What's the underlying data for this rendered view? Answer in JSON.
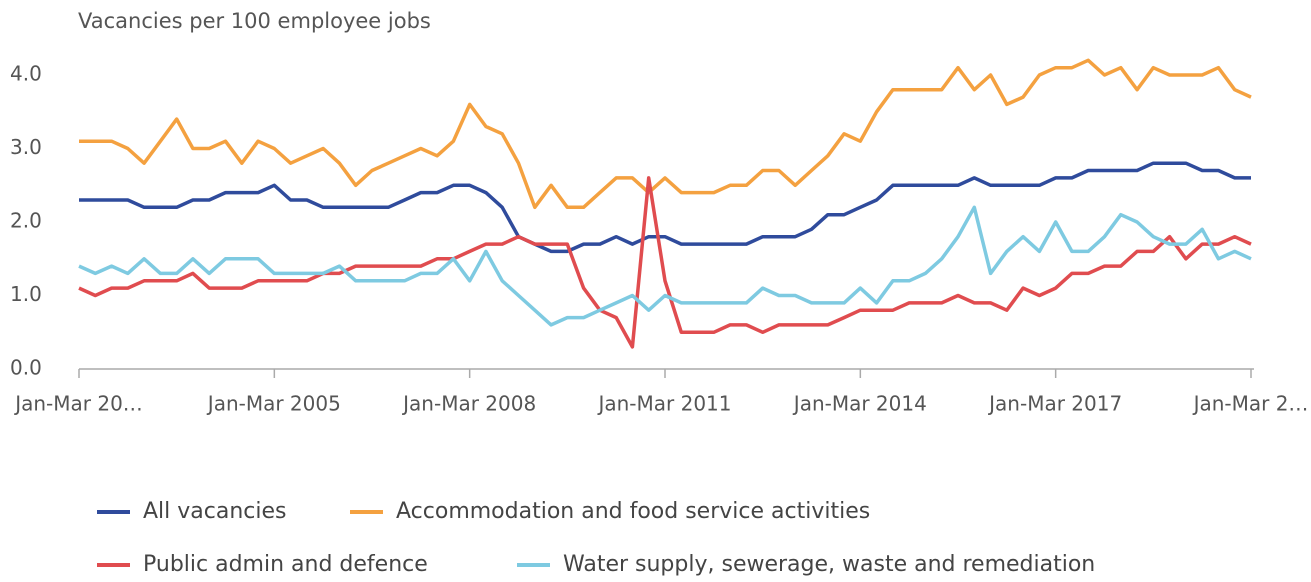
{
  "chart_data": {
    "type": "line",
    "title": "Vacancies per 100 employee jobs",
    "categories": [
      "Jan-Mar 20…",
      null,
      null,
      null,
      null,
      null,
      null,
      null,
      null,
      null,
      null,
      null,
      "Jan-Mar 2005",
      null,
      null,
      null,
      null,
      null,
      null,
      null,
      null,
      null,
      null,
      null,
      "Jan-Mar 2008",
      null,
      null,
      null,
      null,
      null,
      null,
      null,
      null,
      null,
      null,
      null,
      "Jan-Mar 2011",
      null,
      null,
      null,
      null,
      null,
      null,
      null,
      null,
      null,
      null,
      null,
      "Jan-Mar 2014",
      null,
      null,
      null,
      null,
      null,
      null,
      null,
      null,
      null,
      null,
      null,
      "Jan-Mar 2017",
      null,
      null,
      null,
      null,
      null,
      null,
      null,
      null,
      null,
      null,
      null,
      "Jan-Mar 2…"
    ],
    "series": [
      {
        "name": "All vacancies",
        "color": "#2f4b9c",
        "values": [
          2.3,
          2.3,
          2.3,
          2.3,
          2.2,
          2.2,
          2.2,
          2.3,
          2.3,
          2.4,
          2.4,
          2.4,
          2.5,
          2.3,
          2.3,
          2.2,
          2.2,
          2.2,
          2.2,
          2.2,
          2.3,
          2.4,
          2.4,
          2.5,
          2.5,
          2.4,
          2.2,
          1.8,
          1.7,
          1.6,
          1.6,
          1.7,
          1.7,
          1.8,
          1.7,
          1.8,
          1.8,
          1.7,
          1.7,
          1.7,
          1.7,
          1.7,
          1.8,
          1.8,
          1.8,
          1.9,
          2.1,
          2.1,
          2.2,
          2.3,
          2.5,
          2.5,
          2.5,
          2.5,
          2.5,
          2.6,
          2.5,
          2.5,
          2.5,
          2.5,
          2.6,
          2.6,
          2.7,
          2.7,
          2.7,
          2.7,
          2.8,
          2.8,
          2.8,
          2.7,
          2.7,
          2.6,
          2.6
        ]
      },
      {
        "name": "Accommodation and food service activities",
        "color": "#f4a140",
        "values": [
          3.1,
          3.1,
          3.1,
          3.0,
          2.8,
          3.1,
          3.4,
          3.0,
          3.0,
          3.1,
          2.8,
          3.1,
          3.0,
          2.8,
          2.9,
          3.0,
          2.8,
          2.5,
          2.7,
          2.8,
          2.9,
          3.0,
          2.9,
          3.1,
          3.6,
          3.3,
          3.2,
          2.8,
          2.2,
          2.5,
          2.2,
          2.2,
          2.4,
          2.6,
          2.6,
          2.4,
          2.6,
          2.4,
          2.4,
          2.4,
          2.5,
          2.5,
          2.7,
          2.7,
          2.5,
          2.7,
          2.9,
          3.2,
          3.1,
          3.5,
          3.8,
          3.8,
          3.8,
          3.8,
          4.1,
          3.8,
          4.0,
          3.6,
          3.7,
          4.0,
          4.1,
          4.1,
          4.2,
          4.0,
          4.1,
          3.8,
          4.1,
          4.0,
          4.0,
          4.0,
          4.1,
          3.8,
          3.7
        ]
      },
      {
        "name": "Public admin and defence",
        "color": "#e04c4f",
        "values": [
          1.1,
          1.0,
          1.1,
          1.1,
          1.2,
          1.2,
          1.2,
          1.3,
          1.1,
          1.1,
          1.1,
          1.2,
          1.2,
          1.2,
          1.2,
          1.3,
          1.3,
          1.4,
          1.4,
          1.4,
          1.4,
          1.4,
          1.5,
          1.5,
          1.6,
          1.7,
          1.7,
          1.8,
          1.7,
          1.7,
          1.7,
          1.1,
          0.8,
          0.7,
          0.3,
          2.6,
          1.2,
          0.5,
          0.5,
          0.5,
          0.6,
          0.6,
          0.5,
          0.6,
          0.6,
          0.6,
          0.6,
          0.7,
          0.8,
          0.8,
          0.8,
          0.9,
          0.9,
          0.9,
          1.0,
          0.9,
          0.9,
          0.8,
          1.1,
          1.0,
          1.1,
          1.3,
          1.3,
          1.4,
          1.4,
          1.6,
          1.6,
          1.8,
          1.5,
          1.7,
          1.7,
          1.8,
          1.7
        ]
      },
      {
        "name": "Water supply, sewerage, waste and remediation",
        "color": "#7ecae1",
        "values": [
          1.4,
          1.3,
          1.4,
          1.3,
          1.5,
          1.3,
          1.3,
          1.5,
          1.3,
          1.5,
          1.5,
          1.5,
          1.3,
          1.3,
          1.3,
          1.3,
          1.4,
          1.2,
          1.2,
          1.2,
          1.2,
          1.3,
          1.3,
          1.5,
          1.2,
          1.6,
          1.2,
          1.0,
          0.8,
          0.6,
          0.7,
          0.7,
          0.8,
          0.9,
          1.0,
          0.8,
          1.0,
          0.9,
          0.9,
          0.9,
          0.9,
          0.9,
          1.1,
          1.0,
          1.0,
          0.9,
          0.9,
          0.9,
          1.1,
          0.9,
          1.2,
          1.2,
          1.3,
          1.5,
          1.8,
          2.2,
          1.3,
          1.6,
          1.8,
          1.6,
          2.0,
          1.6,
          1.6,
          1.8,
          2.1,
          2.0,
          1.8,
          1.7,
          1.7,
          1.9,
          1.5,
          1.6,
          1.5
        ]
      }
    ],
    "ylim": [
      0,
      4
    ],
    "yticks": [
      {
        "value": 0,
        "label": "0.0"
      },
      {
        "value": 1,
        "label": "1.0"
      },
      {
        "value": 2,
        "label": "2.0"
      },
      {
        "value": 3,
        "label": "3.0"
      },
      {
        "value": 4,
        "label": "4.0"
      }
    ],
    "grid": false
  }
}
